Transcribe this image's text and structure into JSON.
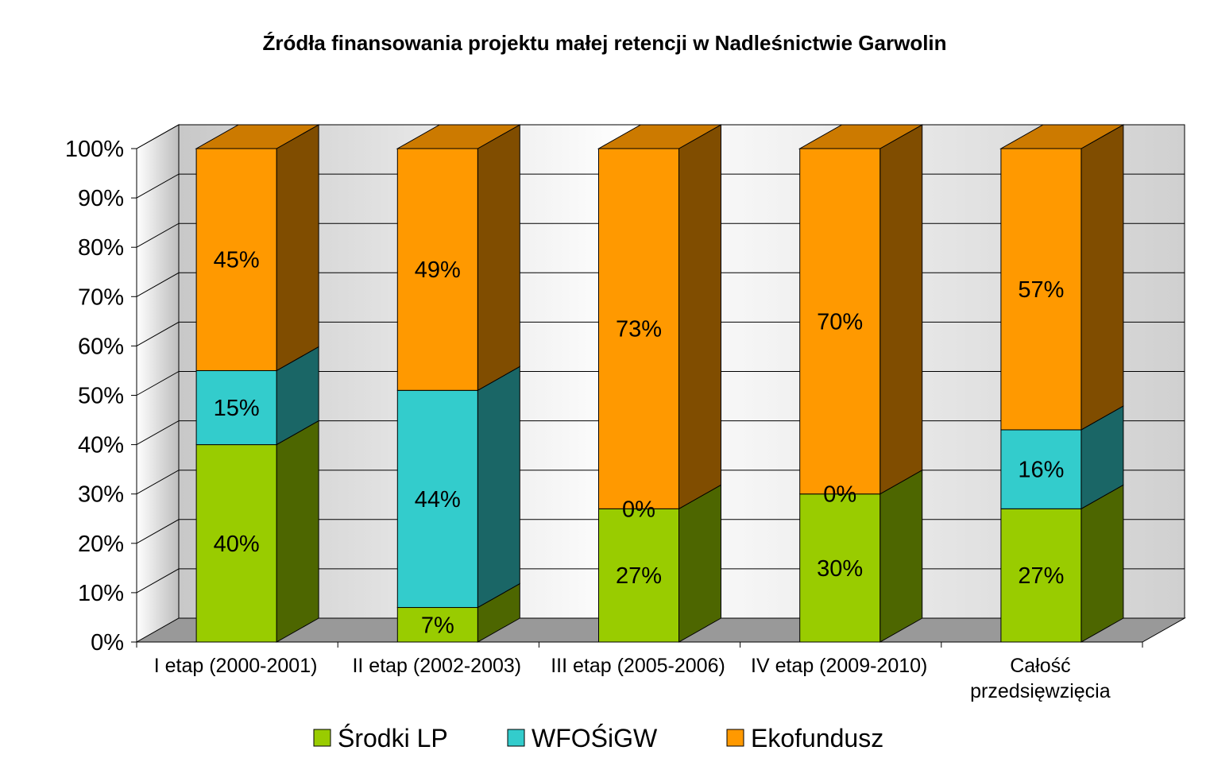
{
  "chart_data": {
    "type": "bar",
    "stacked": true,
    "three_d": true,
    "title": "Źródła finansowania projektu małej retencji w Nadleśnictwie Garwolin",
    "xlabel": "",
    "ylabel": "",
    "ylim": [
      0,
      100
    ],
    "y_ticks": [
      "0%",
      "10%",
      "20%",
      "30%",
      "40%",
      "50%",
      "60%",
      "70%",
      "80%",
      "90%",
      "100%"
    ],
    "grid": true,
    "legend_position": "bottom",
    "categories": [
      "I etap (2000-2001)",
      "II etap (2002-2003)",
      "III etap (2005-2006)",
      "IV etap (2009-2010)",
      "Całość przedsięwzięcia"
    ],
    "category_lines": [
      [
        "I etap (2000-2001)"
      ],
      [
        "II etap (2002-2003)"
      ],
      [
        "III etap (2005-2006)"
      ],
      [
        "IV etap (2009-2010)"
      ],
      [
        "Całość",
        "przedsięwzięcia"
      ]
    ],
    "series": [
      {
        "name": "Środki LP",
        "values": [
          40,
          7,
          27,
          30,
          27
        ],
        "labels": [
          "40%",
          "7%",
          "27%",
          "30%",
          "27%"
        ],
        "color": "#99cc00",
        "side_color": "#4d6600"
      },
      {
        "name": "WFOŚiGW",
        "values": [
          15,
          44,
          0,
          0,
          16
        ],
        "labels": [
          "15%",
          "44%",
          "0%",
          "0%",
          "16%"
        ],
        "color": "#33cccc",
        "side_color": "#1a6666"
      },
      {
        "name": "Ekofundusz",
        "values": [
          45,
          49,
          73,
          70,
          57
        ],
        "labels": [
          "45%",
          "49%",
          "73%",
          "70%",
          "57%"
        ],
        "color": "#ff9900",
        "side_color": "#804d00",
        "top_color": "#cc7a00"
      }
    ]
  }
}
